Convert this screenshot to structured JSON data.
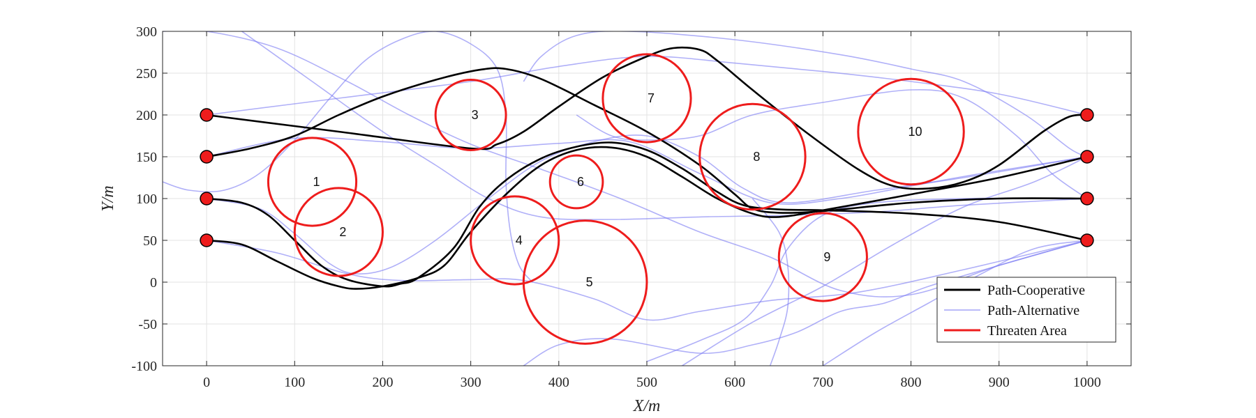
{
  "chart_data": {
    "type": "line",
    "title": "",
    "xlabel": "X/m",
    "ylabel": "Y/m",
    "xlim": [
      -50,
      1050
    ],
    "ylim": [
      -100,
      300
    ],
    "xticks": [
      0,
      100,
      200,
      300,
      400,
      500,
      600,
      700,
      800,
      900,
      1000
    ],
    "yticks": [
      -100,
      -50,
      0,
      50,
      100,
      150,
      200,
      250,
      300
    ],
    "grid": true,
    "legend_position": "bottom-right",
    "colors": {
      "cooperative": "#000000",
      "alternative": "#7c7cf4",
      "threat": "#ee1c1c",
      "node_fill": "#ee1c1c"
    },
    "legend": [
      {
        "key": "cooperative",
        "label": "Path-Cooperative"
      },
      {
        "key": "alternative",
        "label": "Path-Alternative"
      },
      {
        "key": "threat",
        "label": "Threaten Area"
      }
    ],
    "start_points": [
      [
        0,
        200
      ],
      [
        0,
        150
      ],
      [
        0,
        100
      ],
      [
        0,
        50
      ]
    ],
    "end_points": [
      [
        1000,
        200
      ],
      [
        1000,
        150
      ],
      [
        1000,
        100
      ],
      [
        1000,
        50
      ]
    ],
    "threat_areas": [
      {
        "id": "1",
        "x": 120,
        "y": 120,
        "r": 50
      },
      {
        "id": "2",
        "x": 150,
        "y": 60,
        "r": 50
      },
      {
        "id": "3",
        "x": 300,
        "y": 200,
        "r": 40
      },
      {
        "id": "4",
        "x": 350,
        "y": 50,
        "r": 50
      },
      {
        "id": "5",
        "x": 430,
        "y": 0,
        "r": 70
      },
      {
        "id": "6",
        "x": 420,
        "y": 120,
        "r": 30
      },
      {
        "id": "7",
        "x": 500,
        "y": 220,
        "r": 50
      },
      {
        "id": "8",
        "x": 620,
        "y": 150,
        "r": 60
      },
      {
        "id": "9",
        "x": 700,
        "y": 30,
        "r": 50
      },
      {
        "id": "10",
        "x": 800,
        "y": 180,
        "r": 60
      }
    ],
    "series": [
      {
        "key": "cooperative",
        "points": [
          [
            0,
            200
          ],
          [
            150,
            180
          ],
          [
            300,
            160
          ],
          [
            330,
            165
          ],
          [
            360,
            180
          ],
          [
            400,
            210
          ],
          [
            450,
            245
          ],
          [
            500,
            270
          ],
          [
            530,
            280
          ],
          [
            560,
            278
          ],
          [
            580,
            265
          ],
          [
            620,
            230
          ],
          [
            680,
            180
          ],
          [
            740,
            135
          ],
          [
            780,
            115
          ],
          [
            820,
            112
          ],
          [
            860,
            120
          ],
          [
            900,
            140
          ],
          [
            950,
            180
          ],
          [
            980,
            198
          ],
          [
            1000,
            200
          ]
        ]
      },
      {
        "key": "cooperative",
        "points": [
          [
            0,
            150
          ],
          [
            50,
            160
          ],
          [
            100,
            175
          ],
          [
            150,
            200
          ],
          [
            200,
            222
          ],
          [
            260,
            242
          ],
          [
            310,
            254
          ],
          [
            340,
            255
          ],
          [
            380,
            243
          ],
          [
            440,
            212
          ],
          [
            500,
            180
          ],
          [
            560,
            140
          ],
          [
            600,
            105
          ],
          [
            620,
            88
          ],
          [
            650,
            83
          ],
          [
            700,
            85
          ],
          [
            800,
            95
          ],
          [
            900,
            100
          ],
          [
            1000,
            100
          ]
        ]
      },
      {
        "key": "cooperative",
        "points": [
          [
            0,
            100
          ],
          [
            40,
            95
          ],
          [
            70,
            80
          ],
          [
            100,
            50
          ],
          [
            130,
            20
          ],
          [
            160,
            3
          ],
          [
            200,
            -5
          ],
          [
            220,
            -2
          ],
          [
            240,
            5
          ],
          [
            280,
            40
          ],
          [
            310,
            90
          ],
          [
            340,
            122
          ],
          [
            380,
            148
          ],
          [
            420,
            162
          ],
          [
            460,
            167
          ],
          [
            500,
            158
          ],
          [
            540,
            136
          ],
          [
            580,
            108
          ],
          [
            610,
            92
          ],
          [
            650,
            87
          ],
          [
            700,
            86
          ],
          [
            800,
            82
          ],
          [
            900,
            72
          ],
          [
            1000,
            50
          ]
        ]
      },
      {
        "key": "cooperative",
        "points": [
          [
            0,
            50
          ],
          [
            40,
            45
          ],
          [
            80,
            25
          ],
          [
            120,
            5
          ],
          [
            150,
            -5
          ],
          [
            170,
            -8
          ],
          [
            200,
            -5
          ],
          [
            240,
            5
          ],
          [
            270,
            20
          ],
          [
            300,
            60
          ],
          [
            340,
            105
          ],
          [
            380,
            140
          ],
          [
            420,
            158
          ],
          [
            460,
            161
          ],
          [
            500,
            150
          ],
          [
            540,
            126
          ],
          [
            580,
            100
          ],
          [
            620,
            82
          ],
          [
            650,
            78
          ],
          [
            700,
            86
          ],
          [
            800,
            105
          ],
          [
            900,
            125
          ],
          [
            1000,
            150
          ]
        ]
      },
      {
        "key": "alternative",
        "points": [
          [
            0,
            200
          ],
          [
            150,
            220
          ],
          [
            300,
            240
          ],
          [
            400,
            258
          ],
          [
            500,
            270
          ],
          [
            600,
            262
          ],
          [
            700,
            252
          ],
          [
            800,
            240
          ],
          [
            900,
            225
          ],
          [
            1000,
            200
          ]
        ]
      },
      {
        "key": "alternative",
        "points": [
          [
            0,
            150
          ],
          [
            100,
            172
          ],
          [
            200,
            168
          ],
          [
            300,
            160
          ],
          [
            400,
            166
          ],
          [
            480,
            168
          ],
          [
            560,
            130
          ],
          [
            640,
            95
          ],
          [
            720,
            100
          ],
          [
            800,
            115
          ],
          [
            880,
            130
          ],
          [
            1000,
            150
          ]
        ]
      },
      {
        "key": "alternative",
        "points": [
          [
            0,
            100
          ],
          [
            60,
            88
          ],
          [
            100,
            58
          ],
          [
            140,
            22
          ],
          [
            170,
            10
          ],
          [
            210,
            18
          ],
          [
            260,
            50
          ],
          [
            320,
            100
          ],
          [
            380,
            145
          ],
          [
            440,
            168
          ],
          [
            500,
            175
          ],
          [
            560,
            150
          ],
          [
            610,
            112
          ],
          [
            660,
            95
          ],
          [
            760,
            110
          ],
          [
            860,
            125
          ],
          [
            1000,
            150
          ]
        ]
      },
      {
        "key": "alternative",
        "points": [
          [
            0,
            50
          ],
          [
            80,
            35
          ],
          [
            160,
            10
          ],
          [
            220,
            2
          ],
          [
            300,
            3
          ],
          [
            360,
            2
          ],
          [
            440,
            -20
          ],
          [
            500,
            -45
          ],
          [
            560,
            -35
          ],
          [
            640,
            -22
          ],
          [
            740,
            -12
          ],
          [
            860,
            15
          ],
          [
            1000,
            50
          ]
        ]
      },
      {
        "key": "alternative",
        "points": [
          [
            -50,
            300
          ],
          [
            0,
            300
          ],
          [
            80,
            280
          ],
          [
            160,
            240
          ],
          [
            230,
            200
          ],
          [
            300,
            165
          ],
          [
            380,
            135
          ],
          [
            470,
            100
          ],
          [
            560,
            60
          ],
          [
            640,
            30
          ],
          [
            720,
            -10
          ],
          [
            800,
            -15
          ],
          [
            900,
            20
          ],
          [
            1000,
            50
          ]
        ]
      },
      {
        "key": "alternative",
        "points": [
          [
            -50,
            120
          ],
          [
            -20,
            110
          ],
          [
            20,
            110
          ],
          [
            60,
            130
          ],
          [
            100,
            170
          ],
          [
            140,
            220
          ],
          [
            180,
            265
          ],
          [
            220,
            290
          ],
          [
            260,
            300
          ],
          [
            300,
            285
          ],
          [
            330,
            255
          ],
          [
            340,
            200
          ],
          [
            340,
            120
          ],
          [
            345,
            60
          ],
          [
            355,
            20
          ],
          [
            370,
            0
          ]
        ]
      },
      {
        "key": "alternative",
        "points": [
          [
            40,
            300
          ],
          [
            120,
            240
          ],
          [
            200,
            180
          ],
          [
            260,
            140
          ],
          [
            320,
            100
          ],
          [
            380,
            78
          ],
          [
            460,
            75
          ],
          [
            560,
            78
          ],
          [
            660,
            80
          ],
          [
            760,
            84
          ],
          [
            860,
            92
          ],
          [
            1000,
            100
          ]
        ]
      },
      {
        "key": "alternative",
        "points": [
          [
            360,
            -100
          ],
          [
            400,
            -75
          ],
          [
            460,
            -68
          ],
          [
            560,
            -85
          ],
          [
            620,
            -75
          ],
          [
            670,
            -60
          ],
          [
            720,
            -35
          ],
          [
            770,
            -25
          ],
          [
            820,
            -5
          ],
          [
            900,
            20
          ],
          [
            1000,
            50
          ]
        ]
      },
      {
        "key": "alternative",
        "points": [
          [
            540,
            -100
          ],
          [
            620,
            -48
          ],
          [
            700,
            -5
          ],
          [
            780,
            45
          ],
          [
            860,
            90
          ],
          [
            940,
            120
          ],
          [
            1000,
            150
          ]
        ]
      },
      {
        "key": "alternative",
        "points": [
          [
            700,
            -100
          ],
          [
            760,
            -60
          ],
          [
            820,
            -25
          ],
          [
            880,
            10
          ],
          [
            940,
            40
          ],
          [
            1000,
            50
          ]
        ]
      },
      {
        "key": "alternative",
        "points": [
          [
            500,
            -95
          ],
          [
            560,
            -70
          ],
          [
            610,
            -45
          ],
          [
            640,
            -5
          ],
          [
            660,
            40
          ],
          [
            700,
            80
          ],
          [
            760,
            95
          ],
          [
            860,
            100
          ],
          [
            960,
            100
          ],
          [
            1000,
            100
          ]
        ]
      },
      {
        "key": "alternative",
        "points": [
          [
            360,
            240
          ],
          [
            380,
            270
          ],
          [
            420,
            295
          ],
          [
            480,
            300
          ],
          [
            600,
            290
          ],
          [
            720,
            272
          ],
          [
            800,
            255
          ],
          [
            860,
            240
          ],
          [
            930,
            200
          ],
          [
            980,
            160
          ],
          [
            1000,
            150
          ]
        ]
      },
      {
        "key": "alternative",
        "points": [
          [
            620,
            100
          ],
          [
            650,
            60
          ],
          [
            660,
            20
          ],
          [
            660,
            -30
          ],
          [
            650,
            -70
          ],
          [
            640,
            -100
          ]
        ]
      },
      {
        "key": "alternative",
        "points": [
          [
            420,
            200
          ],
          [
            460,
            175
          ],
          [
            500,
            170
          ],
          [
            560,
            175
          ],
          [
            620,
            200
          ],
          [
            700,
            215
          ],
          [
            800,
            230
          ],
          [
            860,
            220
          ],
          [
            920,
            175
          ],
          [
            960,
            130
          ],
          [
            1000,
            100
          ]
        ]
      }
    ]
  }
}
